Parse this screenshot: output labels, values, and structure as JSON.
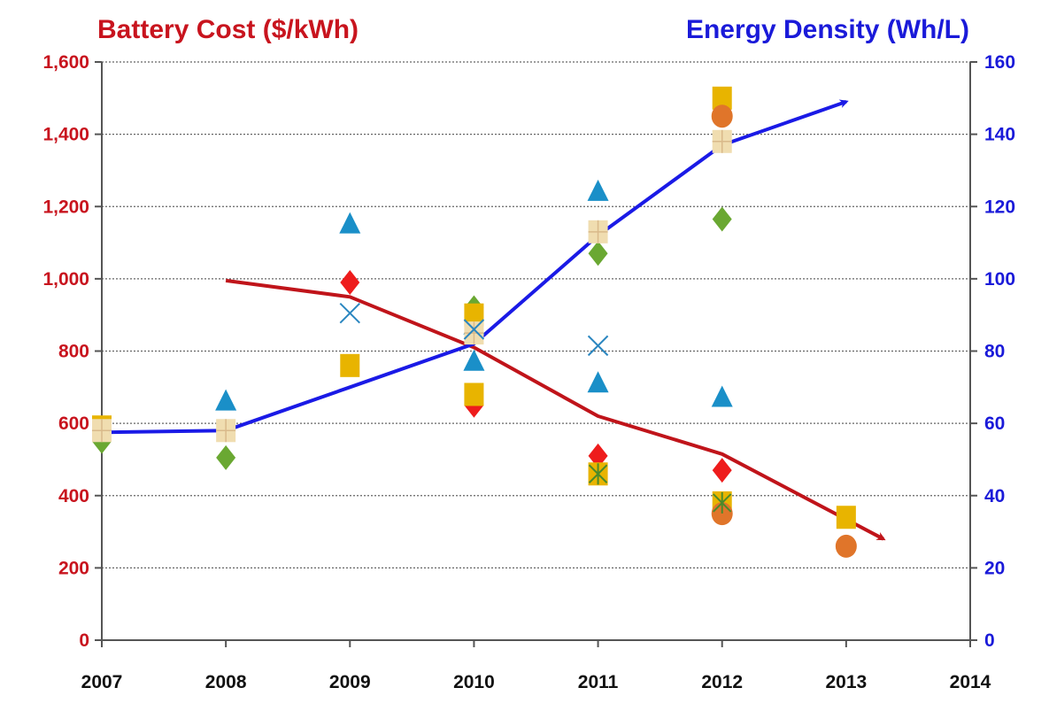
{
  "chart_data": {
    "type": "line",
    "title_left": "Battery Cost ($/kWh)",
    "title_right": "Energy Density (Wh/L)",
    "x_ticks": [
      "2007",
      "2008",
      "2009",
      "2010",
      "2011",
      "2012",
      "2013",
      "2014"
    ],
    "xlim": [
      2007,
      2014
    ],
    "y_left": {
      "label": "Battery Cost ($/kWh)",
      "lim": [
        0,
        1600
      ],
      "ticks": [
        "0",
        "200",
        "400",
        "600",
        "800",
        "1,000",
        "1,200",
        "1,400",
        "1,600"
      ],
      "color": "#c8141e"
    },
    "y_right": {
      "label": "Energy Density (Wh/L)",
      "lim": [
        0,
        160
      ],
      "ticks": [
        "0",
        "20",
        "40",
        "60",
        "80",
        "100",
        "120",
        "140",
        "160"
      ],
      "color": "#1a1ad9"
    },
    "grid": "horizontal dotted",
    "trend_lines": [
      {
        "axis": "left",
        "color": "#c0141a",
        "points": [
          [
            2008,
            995
          ],
          [
            2009,
            950
          ],
          [
            2010,
            810
          ],
          [
            2011,
            620
          ],
          [
            2012,
            515
          ],
          [
            2013.3,
            280
          ]
        ]
      },
      {
        "axis": "right",
        "color": "#1a1ae6",
        "points": [
          [
            2007,
            57.5
          ],
          [
            2008,
            58
          ],
          [
            2009,
            70
          ],
          [
            2010,
            82
          ],
          [
            2011,
            112
          ],
          [
            2012,
            137
          ],
          [
            2013,
            149
          ]
        ]
      }
    ],
    "scatter_series": [
      {
        "marker": "triangle",
        "color": "#1a8fc8",
        "axis": "left",
        "points": [
          [
            2008,
            660
          ],
          [
            2009,
            1150
          ],
          [
            2010,
            770
          ],
          [
            2010,
            870
          ],
          [
            2011,
            1240
          ],
          [
            2011,
            710
          ],
          [
            2012,
            670
          ]
        ]
      },
      {
        "marker": "diamond",
        "color": "#ee1c1c",
        "axis": "left",
        "points": [
          [
            2009,
            990
          ],
          [
            2010,
            650
          ],
          [
            2011,
            510
          ],
          [
            2012,
            470
          ]
        ]
      },
      {
        "marker": "diamond",
        "color": "#6aa832",
        "axis": "left",
        "points": [
          [
            2007,
            550
          ],
          [
            2008,
            505
          ],
          [
            2010,
            920
          ],
          [
            2011,
            1070
          ],
          [
            2012,
            1165
          ]
        ]
      },
      {
        "marker": "square",
        "color": "#e8b400",
        "axis": "left",
        "points": [
          [
            2007,
            590
          ],
          [
            2009,
            760
          ],
          [
            2010,
            900
          ],
          [
            2010,
            680
          ],
          [
            2011,
            460
          ],
          [
            2012,
            1500
          ],
          [
            2012,
            380
          ],
          [
            2013,
            340
          ]
        ]
      },
      {
        "marker": "square-cross",
        "color": "#f0ddb0",
        "axis": "left",
        "points": [
          [
            2007,
            580
          ],
          [
            2008,
            580
          ],
          [
            2010,
            850
          ],
          [
            2011,
            1130
          ],
          [
            2012,
            1380
          ]
        ]
      },
      {
        "marker": "circle",
        "color": "#e0752a",
        "axis": "left",
        "points": [
          [
            2012,
            1450
          ],
          [
            2012,
            350
          ],
          [
            2013,
            260
          ]
        ]
      },
      {
        "marker": "x",
        "color": "#2a86c0",
        "axis": "left",
        "points": [
          [
            2009,
            905
          ],
          [
            2010,
            860
          ],
          [
            2011,
            815
          ]
        ]
      },
      {
        "marker": "asterisk",
        "color": "#4a8a2a",
        "axis": "left",
        "points": [
          [
            2011,
            460
          ],
          [
            2012,
            380
          ]
        ]
      }
    ]
  }
}
